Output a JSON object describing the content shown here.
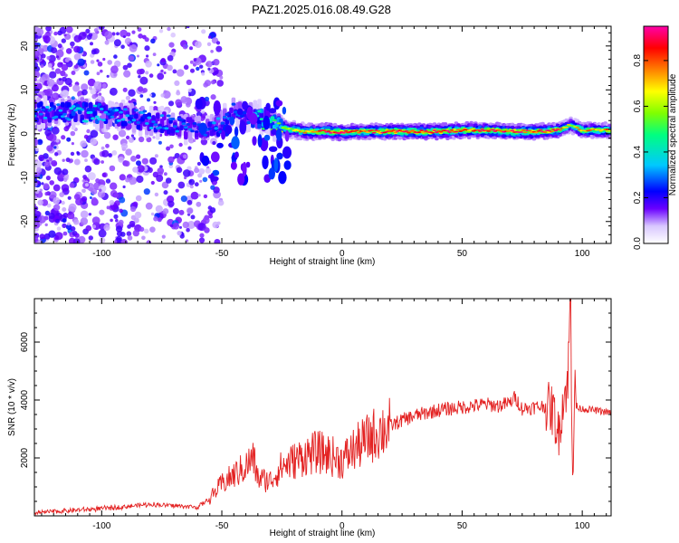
{
  "title": "PAZ1.2025.016.08.49.G28",
  "colors": {
    "snr_line": "#e32222",
    "spectro_band_core": "#ff1a1a",
    "spectro_band_mid": "#00e0a0",
    "spectro_band_edge": "#3300dd",
    "spectro_scatter": "#c9a6ff"
  },
  "chart_data": [
    {
      "type": "heatmap",
      "xlabel": "Height of straight line (km)",
      "ylabel": "Frequency (Hz)",
      "xlim": [
        -128,
        112
      ],
      "ylim": [
        -25,
        24.5
      ],
      "x_ticks": [
        -100,
        -50,
        0,
        50,
        100
      ],
      "x_tick_labels": [
        "-100",
        "-50",
        "0",
        "50",
        "100"
      ],
      "y_ticks": [
        -20,
        -10,
        0,
        10,
        20
      ],
      "y_tick_labels": [
        "-20",
        "-10",
        "0",
        "10",
        "20"
      ],
      "colorbar": {
        "label": "Normalized spectral amplitude",
        "range": [
          0,
          0.95
        ],
        "ticks": [
          0.0,
          0.2,
          0.4,
          0.6,
          0.8
        ],
        "tick_labels": [
          "0.0",
          "0.2",
          "0.4",
          "0.6",
          "0.8"
        ],
        "colormap": [
          "#ffffff",
          "#d9c7ff",
          "#6a00ff",
          "#0000ff",
          "#00c8ff",
          "#00ff80",
          "#80ff00",
          "#ffff00",
          "#ff8000",
          "#ff0000",
          "#ff00aa"
        ]
      },
      "dominant_frequency_track": {
        "x": [
          -125,
          -110,
          -100,
          -90,
          -80,
          -70,
          -60,
          -52,
          -45,
          -38,
          -32,
          -28,
          -22,
          -15,
          -5,
          0,
          10,
          20,
          30,
          40,
          50,
          60,
          70,
          80,
          90,
          95,
          100,
          112
        ],
        "y": [
          5,
          5,
          4.5,
          4,
          3,
          2,
          1,
          1.5,
          5,
          4,
          3,
          2,
          1,
          0.5,
          0.5,
          0.3,
          0.5,
          0.5,
          0.5,
          0.5,
          0.8,
          0.8,
          0.5,
          0.5,
          0.8,
          2,
          0.8,
          0.8
        ],
        "amplitude": [
          0.3,
          0.35,
          0.35,
          0.3,
          0.3,
          0.3,
          0.25,
          0.3,
          0.25,
          0.3,
          0.5,
          0.55,
          0.6,
          0.7,
          0.85,
          0.85,
          0.8,
          0.85,
          0.85,
          0.85,
          0.8,
          0.8,
          0.85,
          0.85,
          0.8,
          0.6,
          0.75,
          0.75
        ]
      },
      "band_width_hz": {
        "x": [
          -128,
          -60,
          -40,
          -30,
          -20,
          0,
          50,
          112
        ],
        "half_width": [
          3,
          3,
          3.5,
          2.5,
          2,
          1.8,
          1.8,
          1.8
        ]
      }
    },
    {
      "type": "line",
      "xlabel": "Height of straight line (km)",
      "ylabel": "SNR (10 * v/v)",
      "xlim": [
        -128,
        112
      ],
      "ylim": [
        0,
        7500
      ],
      "x_ticks": [
        -100,
        -50,
        0,
        50,
        100
      ],
      "x_tick_labels": [
        "-100",
        "-50",
        "0",
        "50",
        "100"
      ],
      "y_ticks": [
        2000,
        4000,
        6000
      ],
      "y_tick_labels": [
        "2000",
        "4000",
        "6000"
      ],
      "series": [
        {
          "x": [
            -128,
            -120,
            -110,
            -100,
            -90,
            -80,
            -70,
            -60,
            -55,
            -50,
            -45,
            -40,
            -37,
            -35,
            -30,
            -25,
            -20,
            -15,
            -10,
            -5,
            0,
            5,
            10,
            15,
            20,
            25,
            30,
            35,
            40,
            45,
            50,
            55,
            60,
            65,
            70,
            72,
            75,
            80,
            85,
            88,
            90,
            92,
            94,
            95,
            96,
            97,
            98,
            100,
            105,
            112
          ],
          "y": [
            100,
            150,
            200,
            250,
            320,
            400,
            350,
            300,
            600,
            1100,
            1400,
            1700,
            2000,
            1300,
            1200,
            1700,
            1900,
            2100,
            2200,
            2100,
            1900,
            2300,
            2600,
            2900,
            3100,
            3300,
            3450,
            3550,
            3650,
            3700,
            3750,
            3800,
            3850,
            3800,
            3900,
            4100,
            3700,
            3750,
            3800,
            3600,
            2800,
            4000,
            4600,
            7500,
            1500,
            4300,
            3700,
            3700,
            3650,
            3550
          ]
        }
      ]
    }
  ]
}
